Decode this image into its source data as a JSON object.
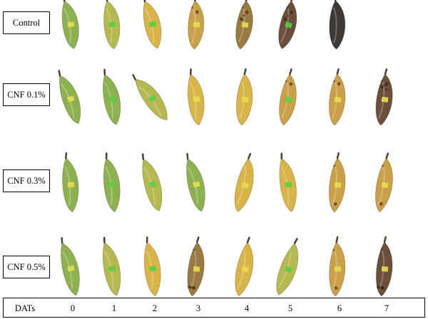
{
  "colors": {
    "green": "#8fb050",
    "yellow_green": "#b6b850",
    "yellow": "#d9b448",
    "golden": "#caa048",
    "brown_spotted": "#9a7a40",
    "brown": "#6b4f3a",
    "dark": "#3d3a36",
    "tag_green": "#55d045",
    "tag_yellow": "#e6e050"
  },
  "rows": [
    {
      "label": "Control",
      "stages": [
        "green",
        "yellow_green",
        "yellow",
        "golden",
        "brown_spotted",
        "brown",
        "dark"
      ]
    },
    {
      "label": "CNF 0.1%",
      "stages": [
        "green",
        "green",
        "yellow_green",
        "yellow",
        "yellow",
        "golden",
        "golden",
        "brown"
      ]
    },
    {
      "label": "CNF 0.3%",
      "stages": [
        "green",
        "green",
        "yellow_green",
        "green",
        "yellow",
        "yellow",
        "golden",
        "golden"
      ]
    },
    {
      "label": "CNF 0.5%",
      "stages": [
        "green",
        "yellow_green",
        "yellow",
        "brown_spotted",
        "yellow",
        "yellow_green",
        "golden",
        "brown"
      ]
    }
  ],
  "dats": {
    "label": "DATs",
    "days": [
      "0",
      "1",
      "2",
      "3",
      "4",
      "5",
      "6",
      "7"
    ]
  }
}
